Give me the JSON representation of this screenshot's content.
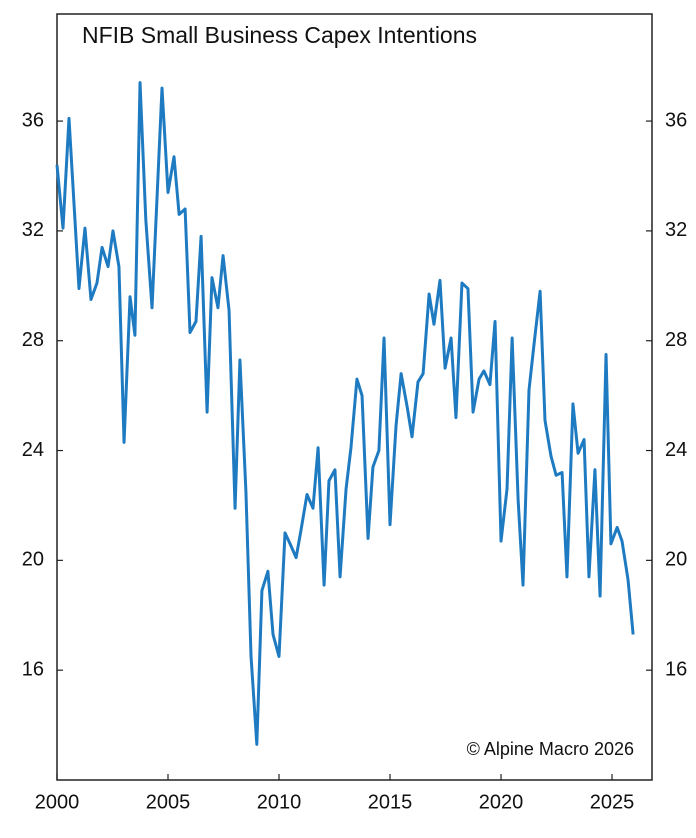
{
  "chart_data": {
    "type": "line",
    "title": "NFIB Small Business Capex Intentions",
    "annotation": "© Alpine Macro 2026",
    "color": "#1f7bc1",
    "x": [
      2000.0,
      2000.27,
      2000.54,
      2000.99,
      2001.26,
      2001.53,
      2001.8,
      2002.03,
      2002.3,
      2002.52,
      2002.79,
      2003.02,
      2003.29,
      2003.51,
      2003.74,
      2004.0,
      2004.28,
      2004.73,
      2005.0,
      2005.27,
      2005.5,
      2005.77,
      2005.99,
      2006.26,
      2006.49,
      2006.76,
      2006.98,
      2007.25,
      2007.48,
      2007.75,
      2008.02,
      2008.24,
      2008.51,
      2008.74,
      2009.0,
      2009.23,
      2009.5,
      2009.73,
      2010.0,
      2010.27,
      2010.5,
      2010.77,
      2010.99,
      2011.26,
      2011.53,
      2011.76,
      2012.03,
      2012.25,
      2012.52,
      2012.75,
      2013.02,
      2013.24,
      2013.51,
      2013.74,
      2014.01,
      2014.23,
      2014.5,
      2014.73,
      2015.0,
      2015.27,
      2015.5,
      2015.77,
      2015.99,
      2016.26,
      2016.49,
      2016.76,
      2016.98,
      2017.25,
      2017.48,
      2017.75,
      2017.97,
      2018.24,
      2018.51,
      2018.74,
      2019.01,
      2019.23,
      2019.5,
      2019.73,
      2020.0,
      2020.27,
      2020.5,
      2020.77,
      2020.99,
      2021.26,
      2021.49,
      2021.76,
      2021.98,
      2022.25,
      2022.48,
      2022.75,
      2022.97,
      2023.24,
      2023.47,
      2023.74,
      2023.96,
      2024.23,
      2024.46,
      2024.73,
      2024.95,
      2025.23,
      2025.45,
      2025.72,
      2025.95
    ],
    "values": [
      34.4,
      32.1,
      36.1,
      29.9,
      32.1,
      29.5,
      30.1,
      31.4,
      30.7,
      32.0,
      30.7,
      24.3,
      29.6,
      28.2,
      37.4,
      32.4,
      29.2,
      37.2,
      33.4,
      34.7,
      32.6,
      32.8,
      28.3,
      28.7,
      31.8,
      25.4,
      30.3,
      29.2,
      31.1,
      29.1,
      21.9,
      27.3,
      22.5,
      16.5,
      13.3,
      18.9,
      19.6,
      17.3,
      16.5,
      21.0,
      20.6,
      20.1,
      21.1,
      22.4,
      21.9,
      24.1,
      19.1,
      22.9,
      23.3,
      19.4,
      22.6,
      24.1,
      26.6,
      26.0,
      20.8,
      23.4,
      24.0,
      28.1,
      21.3,
      24.9,
      26.8,
      25.6,
      24.5,
      26.5,
      26.8,
      29.7,
      28.6,
      30.2,
      27.0,
      28.1,
      25.2,
      30.1,
      29.9,
      25.4,
      26.6,
      26.9,
      26.4,
      28.7,
      20.7,
      22.6,
      28.1,
      22.2,
      19.1,
      26.2,
      27.9,
      29.8,
      25.1,
      23.8,
      23.1,
      23.2,
      19.4,
      25.7,
      23.9,
      24.4,
      19.4,
      23.3,
      18.7,
      27.5,
      20.6,
      21.2,
      20.7,
      19.3,
      17.3
    ],
    "xlim": [
      2000,
      2026.8
    ],
    "xticks": [
      2000,
      2005,
      2010,
      2015,
      2020,
      2025
    ],
    "ylim": [
      12,
      39.9
    ],
    "yticks": [
      16,
      20,
      24,
      28,
      32,
      36
    ],
    "y2lim": [
      12,
      39.9
    ],
    "y2ticks": [
      16,
      20,
      24,
      28,
      32,
      36
    ]
  }
}
